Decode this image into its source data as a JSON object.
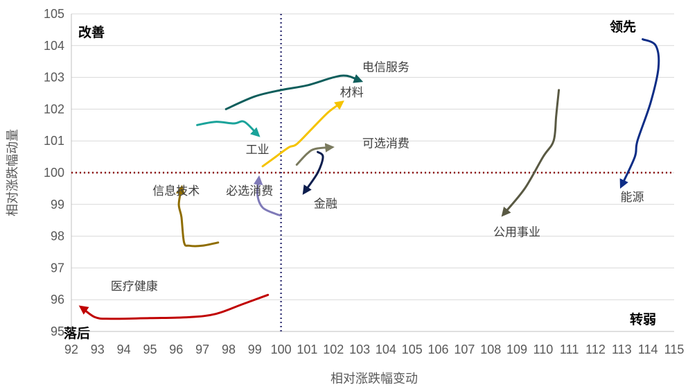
{
  "chart_data": {
    "type": "line",
    "title": "",
    "xlabel": "相对涨跌幅变动",
    "ylabel": "相对涨跌幅动量",
    "xlim": [
      92,
      115
    ],
    "ylim": [
      95,
      105
    ],
    "xticks": [
      92,
      93,
      94,
      95,
      96,
      97,
      98,
      99,
      100,
      101,
      102,
      103,
      104,
      105,
      106,
      107,
      108,
      109,
      110,
      111,
      112,
      113,
      114,
      115
    ],
    "yticks": [
      95,
      96,
      97,
      98,
      99,
      100,
      101,
      102,
      103,
      104,
      105
    ],
    "grid": true,
    "reference_lines": {
      "x": 100,
      "y": 100
    },
    "quadrant_labels": {
      "top_left": "改善",
      "top_right": "领先",
      "bottom_left": "落后",
      "bottom_right": "转弱"
    },
    "series": [
      {
        "name": "电信服务",
        "color": "#0f5e5c",
        "label_at": [
          104,
          103.2
        ],
        "points": [
          [
            97.9,
            102.0
          ],
          [
            99.0,
            102.4
          ],
          [
            100.0,
            102.6
          ],
          [
            101.0,
            102.75
          ],
          [
            102.0,
            103.0
          ],
          [
            102.5,
            103.05
          ],
          [
            103.0,
            102.9
          ]
        ]
      },
      {
        "name": "材料",
        "color": "#f5c300",
        "label_at": [
          102.7,
          102.4
        ],
        "points": [
          [
            99.3,
            100.2
          ],
          [
            99.8,
            100.5
          ],
          [
            100.3,
            100.8
          ],
          [
            100.6,
            100.9
          ],
          [
            101.2,
            101.4
          ],
          [
            101.8,
            101.9
          ],
          [
            102.3,
            102.2
          ]
        ]
      },
      {
        "name": "工业",
        "color": "#1aa39a",
        "label_at": [
          99.1,
          100.6
        ],
        "points": [
          [
            96.8,
            101.5
          ],
          [
            97.5,
            101.6
          ],
          [
            98.2,
            101.55
          ],
          [
            98.6,
            101.6
          ],
          [
            99.1,
            101.2
          ]
        ]
      },
      {
        "name": "可选消费",
        "color": "#7a7a5e",
        "label_at": [
          104,
          100.8
        ],
        "points": [
          [
            100.6,
            100.25
          ],
          [
            101.0,
            100.6
          ],
          [
            101.3,
            100.75
          ],
          [
            101.9,
            100.8
          ]
        ]
      },
      {
        "name": "金融",
        "color": "#0d1e4e",
        "label_at": [
          101.7,
          98.9
        ],
        "points": [
          [
            101.4,
            100.65
          ],
          [
            101.6,
            100.5
          ],
          [
            101.4,
            100.0
          ],
          [
            100.9,
            99.4
          ]
        ]
      },
      {
        "name": "必选消费",
        "color": "#7f7ab8",
        "label_at": [
          98.8,
          99.3
        ],
        "points": [
          [
            100.0,
            98.65
          ],
          [
            99.8,
            98.7
          ],
          [
            99.3,
            98.9
          ],
          [
            99.1,
            99.3
          ],
          [
            99.15,
            99.8
          ]
        ]
      },
      {
        "name": "信息技术",
        "color": "#8f6d00",
        "label_at": [
          96.0,
          99.3
        ],
        "points": [
          [
            97.6,
            97.8
          ],
          [
            97.0,
            97.7
          ],
          [
            96.5,
            97.7
          ],
          [
            96.3,
            97.8
          ],
          [
            96.2,
            98.6
          ],
          [
            96.1,
            99.0
          ],
          [
            96.2,
            99.5
          ]
        ]
      },
      {
        "name": "公用事业",
        "color": "#595943",
        "label_at": [
          109.0,
          98.0
        ],
        "points": [
          [
            110.6,
            102.6
          ],
          [
            110.5,
            101.8
          ],
          [
            110.4,
            101.0
          ],
          [
            110.0,
            100.5
          ],
          [
            109.3,
            99.5
          ],
          [
            108.5,
            98.7
          ]
        ]
      },
      {
        "name": "能源",
        "color": "#0d2d86",
        "label_at": [
          113.4,
          99.1
        ],
        "points": [
          [
            113.8,
            104.2
          ],
          [
            114.3,
            104.0
          ],
          [
            114.4,
            103.3
          ],
          [
            114.1,
            102.2
          ],
          [
            113.6,
            101.0
          ],
          [
            113.5,
            100.5
          ],
          [
            113.0,
            99.6
          ]
        ]
      },
      {
        "name": "医疗健康",
        "color": "#c00000",
        "label_at": [
          94.4,
          96.3
        ],
        "points": [
          [
            99.5,
            96.15
          ],
          [
            98.5,
            95.85
          ],
          [
            97.5,
            95.55
          ],
          [
            96.5,
            95.45
          ],
          [
            95.0,
            95.42
          ],
          [
            93.5,
            95.4
          ],
          [
            92.9,
            95.45
          ],
          [
            92.4,
            95.75
          ]
        ]
      }
    ]
  }
}
